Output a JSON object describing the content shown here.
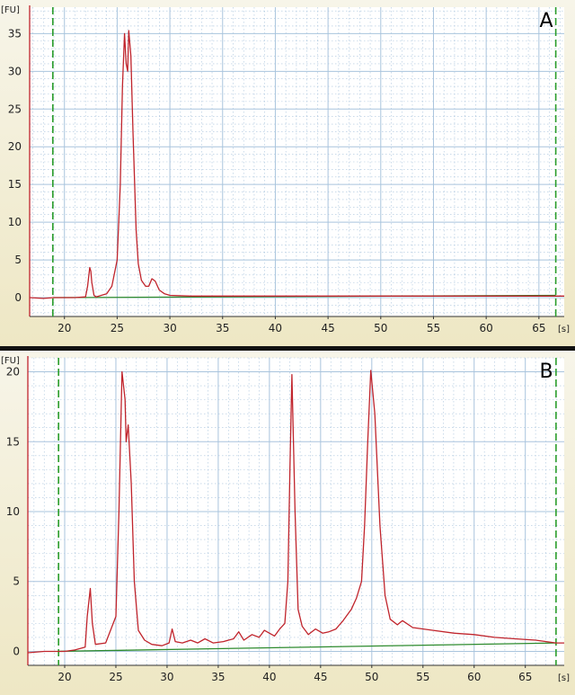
{
  "chart_data": [
    {
      "type": "line",
      "panel_label": "A",
      "y_unit_label": "[FU]",
      "x_unit_label": "[s]",
      "xlim": [
        16.7,
        67.4
      ],
      "ylim": [
        -2.5,
        38.5
      ],
      "x_ticks": [
        20,
        25,
        30,
        35,
        40,
        45,
        50,
        55,
        60,
        65
      ],
      "y_ticks": [
        0,
        5,
        10,
        15,
        20,
        25,
        30,
        35
      ],
      "grid": true,
      "markers": [
        18.9,
        66.6
      ],
      "colors": {
        "trace": "#c0242c",
        "baseline": "#2e8b2e",
        "marker": "#2a9d2a",
        "grid": "#a9c4dd",
        "axis": "#c0242c"
      },
      "series": [
        {
          "x": [
            16.7,
            18,
            19,
            20,
            21,
            22,
            22.2,
            22.4,
            22.5,
            22.6,
            22.8,
            23,
            24,
            24.5,
            25,
            25.3,
            25.5,
            25.7,
            25.85,
            26,
            26.1,
            26.3,
            26.5,
            26.8,
            27,
            27.3,
            27.7,
            28,
            28.3,
            28.6,
            29,
            29.5,
            30,
            32,
            35,
            40,
            45,
            50,
            55,
            60,
            65,
            67.4
          ],
          "y": [
            0,
            -0.1,
            0,
            0,
            0,
            0.1,
            1.5,
            4.0,
            3.5,
            2.0,
            0.3,
            0.1,
            0.5,
            1.5,
            5.0,
            15.0,
            28.0,
            35.0,
            31.0,
            30.0,
            35.4,
            32.0,
            22.0,
            9.0,
            4.5,
            2.3,
            1.5,
            1.5,
            2.5,
            2.2,
            1.0,
            0.5,
            0.3,
            0.2,
            0.2,
            0.2,
            0.2,
            0.2,
            0.2,
            0.2,
            0.2,
            0.2
          ]
        }
      ],
      "baseline": {
        "x": [
          18.9,
          66.6
        ],
        "y": [
          0,
          0.3
        ]
      }
    },
    {
      "type": "line",
      "panel_label": "B",
      "y_unit_label": "[FU]",
      "x_unit_label": "[s]",
      "xlim": [
        16.4,
        68.8
      ],
      "ylim": [
        -1.0,
        21.0
      ],
      "x_ticks": [
        20,
        25,
        30,
        35,
        40,
        45,
        50,
        55,
        60,
        65
      ],
      "y_ticks": [
        0,
        5,
        10,
        15,
        20
      ],
      "grid": true,
      "markers": [
        19.4,
        68.0
      ],
      "colors": {
        "trace": "#c0242c",
        "baseline": "#2e8b2e",
        "marker": "#2a9d2a",
        "grid": "#a9c4dd",
        "axis": "#c0242c"
      },
      "series": [
        {
          "x": [
            16.4,
            18,
            20,
            21,
            22,
            22.2,
            22.5,
            22.7,
            23,
            24,
            25,
            25.3,
            25.6,
            25.9,
            26,
            26.2,
            26.5,
            26.8,
            27.2,
            27.8,
            28.5,
            29.5,
            30.2,
            30.5,
            30.8,
            31.5,
            32.3,
            33,
            33.7,
            34.5,
            35.5,
            36.5,
            37,
            37.5,
            38.3,
            39,
            39.5,
            40.5,
            41,
            41.5,
            41.8,
            42,
            42.2,
            42.5,
            42.8,
            43.2,
            43.8,
            44.5,
            45.2,
            45.8,
            46.5,
            47.2,
            48,
            48.5,
            49,
            49.3,
            49.6,
            49.9,
            50.3,
            50.8,
            51.3,
            51.8,
            52.5,
            53,
            54,
            56,
            58,
            60,
            62,
            64,
            66,
            68,
            68.8
          ],
          "y": [
            -0.1,
            0.0,
            0.0,
            0.1,
            0.3,
            2.5,
            4.5,
            2.0,
            0.5,
            0.6,
            2.5,
            10.0,
            20.0,
            18.0,
            15.0,
            16.2,
            12.0,
            5.0,
            1.5,
            0.8,
            0.5,
            0.4,
            0.6,
            1.6,
            0.7,
            0.6,
            0.8,
            0.6,
            0.9,
            0.6,
            0.7,
            0.9,
            1.4,
            0.8,
            1.2,
            1.0,
            1.5,
            1.1,
            1.6,
            2.0,
            5.0,
            13.0,
            19.8,
            10.0,
            3.0,
            1.8,
            1.2,
            1.6,
            1.3,
            1.4,
            1.6,
            2.2,
            3.0,
            3.8,
            5.0,
            9.0,
            15.0,
            20.1,
            17.0,
            9.0,
            4.0,
            2.3,
            1.9,
            2.2,
            1.7,
            1.5,
            1.3,
            1.2,
            1.0,
            0.9,
            0.8,
            0.6,
            0.6
          ]
        }
      ],
      "baseline": {
        "x": [
          19.4,
          68.0
        ],
        "y": [
          0,
          0.6
        ]
      }
    }
  ]
}
